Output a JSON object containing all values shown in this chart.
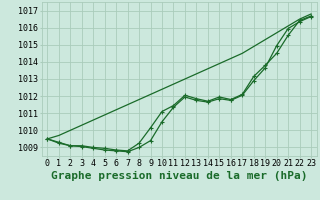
{
  "title": "Graphe pression niveau de la mer (hPa)",
  "xlabel_ticks": [
    0,
    1,
    2,
    3,
    4,
    5,
    6,
    7,
    8,
    9,
    10,
    11,
    12,
    13,
    14,
    15,
    16,
    17,
    18,
    19,
    20,
    21,
    22,
    23
  ],
  "yticks": [
    1009,
    1010,
    1011,
    1012,
    1013,
    1014,
    1015,
    1016,
    1017
  ],
  "ylim": [
    1008.5,
    1017.5
  ],
  "xlim": [
    -0.5,
    23.5
  ],
  "bg_color": "#cce8dd",
  "grid_color": "#aaccbb",
  "line_color": "#1a6b2a",
  "marker_color": "#1a6b2a",
  "series_smooth": [
    1009.5,
    1009.7,
    1010.0,
    1010.3,
    1010.6,
    1010.9,
    1011.2,
    1011.5,
    1011.8,
    1012.1,
    1012.4,
    1012.7,
    1013.0,
    1013.3,
    1013.6,
    1013.9,
    1014.2,
    1014.5,
    1014.9,
    1015.3,
    1015.7,
    1016.1,
    1016.5,
    1016.8
  ],
  "series_marked1": [
    1009.5,
    1009.3,
    1009.1,
    1009.05,
    1008.95,
    1008.85,
    1008.8,
    1008.75,
    1009.0,
    1009.4,
    1010.5,
    1011.35,
    1011.95,
    1011.75,
    1011.65,
    1011.85,
    1011.75,
    1012.05,
    1012.9,
    1013.65,
    1014.95,
    1015.95,
    1016.35,
    1016.65
  ],
  "series_marked2": [
    1009.5,
    1009.25,
    1009.1,
    1009.1,
    1009.0,
    1008.95,
    1008.85,
    1008.8,
    1009.25,
    1010.15,
    1011.1,
    1011.45,
    1012.05,
    1011.85,
    1011.7,
    1011.95,
    1011.8,
    1012.1,
    1013.15,
    1013.8,
    1014.5,
    1015.55,
    1016.42,
    1016.68
  ],
  "title_fontsize": 8,
  "tick_fontsize": 6,
  "fig_width": 3.2,
  "fig_height": 2.0,
  "dpi": 100
}
